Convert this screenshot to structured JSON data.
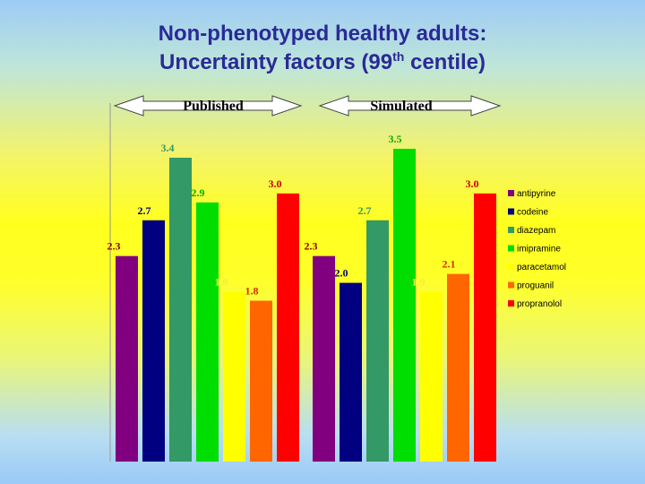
{
  "title": {
    "line1": "Non-phenotyped healthy adults:",
    "line2_pre": "Uncertainty factors (99",
    "line2_sup": "th",
    "line2_post": " centile)"
  },
  "chart_data": {
    "type": "bar",
    "groups": [
      "Published",
      "Simulated"
    ],
    "series": [
      {
        "name": "antipyrine",
        "color": "#800080",
        "values": [
          2.3,
          2.3
        ],
        "labels": [
          "2.3",
          "2.3"
        ],
        "label_color": "#8b0000"
      },
      {
        "name": "codeine",
        "color": "#000080",
        "values": [
          2.7,
          2.0
        ],
        "labels": [
          "2.7",
          "2.0"
        ],
        "label_color": "#000080"
      },
      {
        "name": "diazepam",
        "color": "#339966",
        "values": [
          3.4,
          2.7
        ],
        "labels": [
          "3.4",
          "2.7"
        ],
        "label_color": "#339966"
      },
      {
        "name": "imipramine",
        "color": "#00dd00",
        "values": [
          2.9,
          3.5
        ],
        "labels": [
          "2.9",
          "3.5"
        ],
        "label_color": "#00b000"
      },
      {
        "name": "paracetamol",
        "color": "#ffff00",
        "values": [
          1.9,
          1.9
        ],
        "labels": [
          "1.9",
          "1.9"
        ],
        "label_color": "#eeee44"
      },
      {
        "name": "proguanil",
        "color": "#ff6600",
        "values": [
          1.8,
          2.1
        ],
        "labels": [
          "1.8",
          "2.1"
        ],
        "label_color": "#cc3300"
      },
      {
        "name": "propranolol",
        "color": "#ff0000",
        "values": [
          3.0,
          3.0
        ],
        "labels": [
          "3.0",
          "3.0"
        ],
        "label_color": "#cc0000"
      }
    ],
    "ylim": [
      0,
      3.5
    ],
    "legend_position": "right"
  }
}
